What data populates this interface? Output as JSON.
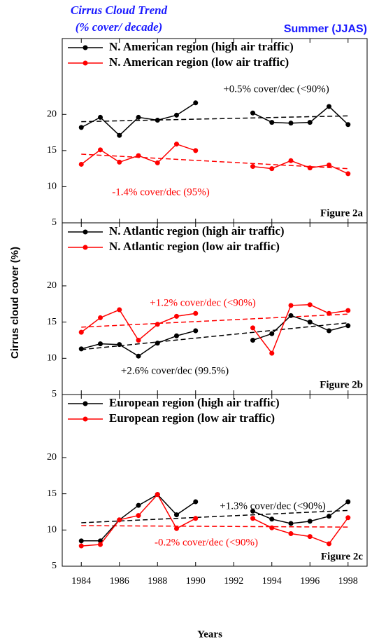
{
  "header": {
    "title": "Cirrus Cloud Trend",
    "subtitle": "(% cover/ decade)",
    "season": "Summer (JJAS)"
  },
  "xlabel": "Years",
  "ylabel": "Cirrus cloud cover (%)",
  "chart_data": [
    {
      "type": "line",
      "label": "Figure 2a",
      "x": [
        1984,
        1985,
        1986,
        1987,
        1988,
        1989,
        1990,
        1993,
        1994,
        1995,
        1996,
        1997,
        1998
      ],
      "xlim": [
        1983,
        1999
      ],
      "ylim": [
        5,
        30.5
      ],
      "yticks": [
        5,
        10,
        15,
        20
      ],
      "series": [
        {
          "name": "N. American region (high air traffic)",
          "color": "#000000",
          "values": [
            18.2,
            19.6,
            17.1,
            19.6,
            19.2,
            19.9,
            21.6,
            20.2,
            18.9,
            18.8,
            18.9,
            21.1,
            18.6
          ]
        },
        {
          "name": "N. American region (low air traffic)",
          "color": "#ff0000",
          "values": [
            13.1,
            15.1,
            13.4,
            14.3,
            13.3,
            15.9,
            15.0,
            12.8,
            12.5,
            13.6,
            12.6,
            13.0,
            11.8
          ]
        }
      ],
      "trends": [
        {
          "color": "#000000",
          "x": [
            1984,
            1998
          ],
          "values": [
            19.0,
            19.8
          ],
          "text": "+0.5% cover/dec (<90%)"
        },
        {
          "color": "#ff0000",
          "x": [
            1984,
            1998
          ],
          "values": [
            14.5,
            12.5
          ],
          "text": "-1.4% cover/dec (95%)"
        }
      ]
    },
    {
      "type": "line",
      "label": "Figure 2b",
      "x": [
        1984,
        1985,
        1986,
        1987,
        1988,
        1989,
        1990,
        1993,
        1994,
        1995,
        1996,
        1997,
        1998
      ],
      "xlim": [
        1983,
        1999
      ],
      "ylim": [
        5,
        28.7
      ],
      "yticks": [
        5,
        10,
        15,
        20
      ],
      "series": [
        {
          "name": "N. Atlantic region (high air traffic)",
          "color": "#000000",
          "values": [
            11.3,
            12.0,
            11.9,
            10.3,
            12.1,
            13.1,
            13.8,
            12.5,
            13.4,
            15.9,
            15.0,
            13.8,
            14.5
          ]
        },
        {
          "name": "N. Atlantic region (low air traffic)",
          "color": "#ff0000",
          "values": [
            13.6,
            15.6,
            16.7,
            12.5,
            14.7,
            15.8,
            16.2,
            14.2,
            10.7,
            17.3,
            17.4,
            16.2,
            16.6
          ]
        }
      ],
      "trends": [
        {
          "color": "#000000",
          "x": [
            1984,
            1998
          ],
          "values": [
            11.2,
            14.9
          ],
          "text": "+2.6% cover/dec (99.5%)"
        },
        {
          "color": "#ff0000",
          "x": [
            1984,
            1998
          ],
          "values": [
            14.3,
            16.1
          ],
          "text": "+1.2% cover/dec (<90%)"
        }
      ]
    },
    {
      "type": "line",
      "label": "Figure 2c",
      "x": [
        1984,
        1985,
        1986,
        1987,
        1988,
        1989,
        1990,
        1993,
        1994,
        1995,
        1996,
        1997,
        1998
      ],
      "xlim": [
        1983,
        1999
      ],
      "xticks": [
        1984,
        1986,
        1988,
        1990,
        1992,
        1994,
        1996,
        1998
      ],
      "ylim": [
        5,
        28.7
      ],
      "yticks": [
        5,
        10,
        15,
        20
      ],
      "series": [
        {
          "name": "European region (high air traffic)",
          "color": "#000000",
          "values": [
            8.5,
            8.5,
            11.4,
            13.4,
            14.9,
            12.1,
            13.9,
            12.6,
            11.5,
            10.9,
            11.2,
            11.9,
            13.9
          ]
        },
        {
          "name": "European region (low air traffic)",
          "color": "#ff0000",
          "values": [
            7.8,
            8.0,
            11.4,
            12.0,
            14.9,
            10.2,
            11.6,
            11.6,
            10.3,
            9.5,
            9.1,
            8.1,
            11.7
          ]
        }
      ],
      "trends": [
        {
          "color": "#000000",
          "x": [
            1984,
            1998
          ],
          "values": [
            11.0,
            12.7
          ],
          "text": "+1.3% cover/dec (<90%)"
        },
        {
          "color": "#ff0000",
          "x": [
            1984,
            1998
          ],
          "values": [
            10.6,
            10.4
          ],
          "text": "-0.2% cover/dec (<90%)"
        }
      ]
    }
  ]
}
